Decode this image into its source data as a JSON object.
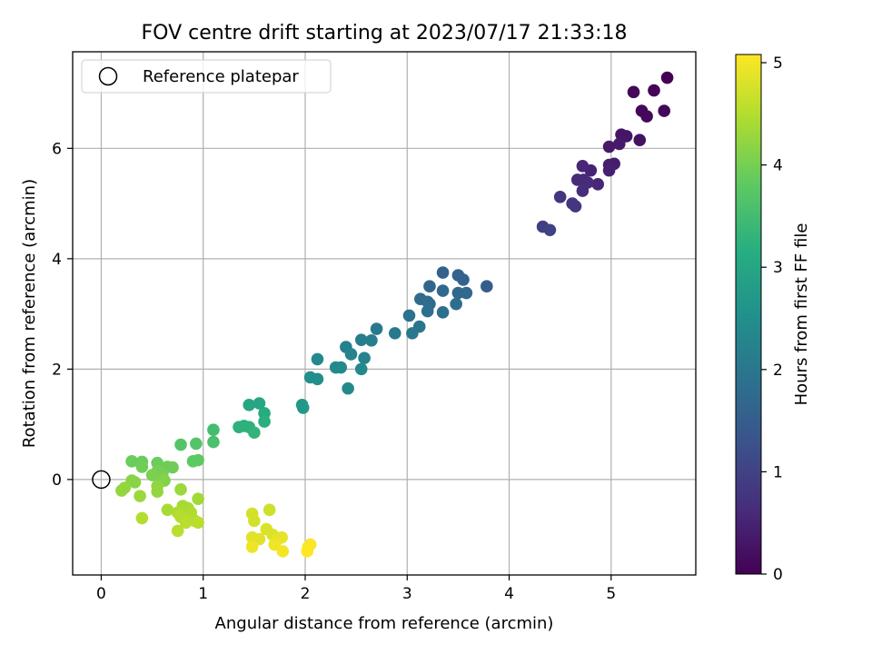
{
  "chart_data": {
    "type": "scatter",
    "title": "FOV centre drift starting at 2023/07/17 21:33:18",
    "xlabel": "Angular distance from reference (arcmin)",
    "ylabel": "Rotation from reference (arcmin)",
    "xlim": [
      -0.28,
      5.83
    ],
    "ylim": [
      -1.73,
      7.75
    ],
    "x_ticks": [
      0,
      1,
      2,
      3,
      4,
      5
    ],
    "y_ticks": [
      0,
      2,
      4,
      6
    ],
    "grid": true,
    "legend": {
      "placement": "top-left",
      "entries": [
        "Reference platepar"
      ]
    },
    "reference_point": {
      "x": 0,
      "y": 0,
      "label": "Reference platepar"
    },
    "colorbar": {
      "label": "Hours from first FF file",
      "range": [
        0,
        5.08
      ],
      "ticks": [
        0,
        1,
        2,
        3,
        4,
        5
      ],
      "colormap": "viridis"
    },
    "series": [
      {
        "points": [
          {
            "x": 5.55,
            "y": 7.28,
            "c": 0.0
          },
          {
            "x": 5.42,
            "y": 7.05,
            "c": 0.05
          },
          {
            "x": 5.22,
            "y": 7.02,
            "c": 0.08
          },
          {
            "x": 5.3,
            "y": 6.68,
            "c": 0.1
          },
          {
            "x": 5.35,
            "y": 6.58,
            "c": 0.12
          },
          {
            "x": 5.52,
            "y": 6.68,
            "c": 0.1
          },
          {
            "x": 5.28,
            "y": 6.15,
            "c": 0.25
          },
          {
            "x": 5.1,
            "y": 6.25,
            "c": 0.3
          },
          {
            "x": 5.15,
            "y": 6.22,
            "c": 0.3
          },
          {
            "x": 4.98,
            "y": 6.03,
            "c": 0.35
          },
          {
            "x": 5.08,
            "y": 6.08,
            "c": 0.35
          },
          {
            "x": 5.03,
            "y": 5.72,
            "c": 0.4
          },
          {
            "x": 4.98,
            "y": 5.7,
            "c": 0.42
          },
          {
            "x": 4.98,
            "y": 5.6,
            "c": 0.45
          },
          {
            "x": 4.8,
            "y": 5.6,
            "c": 0.5
          },
          {
            "x": 4.72,
            "y": 5.68,
            "c": 0.55
          },
          {
            "x": 4.87,
            "y": 5.35,
            "c": 0.55
          },
          {
            "x": 4.67,
            "y": 5.43,
            "c": 0.6
          },
          {
            "x": 4.73,
            "y": 5.43,
            "c": 0.6
          },
          {
            "x": 4.77,
            "y": 5.38,
            "c": 0.62
          },
          {
            "x": 4.72,
            "y": 5.23,
            "c": 0.65
          },
          {
            "x": 4.5,
            "y": 5.12,
            "c": 0.75
          },
          {
            "x": 4.62,
            "y": 5.0,
            "c": 0.8
          },
          {
            "x": 4.65,
            "y": 4.95,
            "c": 0.8
          },
          {
            "x": 4.33,
            "y": 4.58,
            "c": 0.95
          },
          {
            "x": 4.4,
            "y": 4.52,
            "c": 1.0
          },
          {
            "x": 3.35,
            "y": 3.75,
            "c": 1.55
          },
          {
            "x": 3.5,
            "y": 3.7,
            "c": 1.6
          },
          {
            "x": 3.55,
            "y": 3.62,
            "c": 1.6
          },
          {
            "x": 3.78,
            "y": 3.5,
            "c": 1.5
          },
          {
            "x": 3.22,
            "y": 3.5,
            "c": 1.65
          },
          {
            "x": 3.35,
            "y": 3.42,
            "c": 1.7
          },
          {
            "x": 3.5,
            "y": 3.38,
            "c": 1.7
          },
          {
            "x": 3.58,
            "y": 3.38,
            "c": 1.7
          },
          {
            "x": 3.13,
            "y": 3.27,
            "c": 1.75
          },
          {
            "x": 3.2,
            "y": 3.22,
            "c": 1.8
          },
          {
            "x": 3.22,
            "y": 3.18,
            "c": 1.8
          },
          {
            "x": 3.48,
            "y": 3.18,
            "c": 1.8
          },
          {
            "x": 3.2,
            "y": 3.05,
            "c": 1.85
          },
          {
            "x": 3.35,
            "y": 3.03,
            "c": 1.85
          },
          {
            "x": 3.02,
            "y": 2.97,
            "c": 1.9
          },
          {
            "x": 3.12,
            "y": 2.77,
            "c": 1.95
          },
          {
            "x": 3.05,
            "y": 2.65,
            "c": 2.0
          },
          {
            "x": 2.88,
            "y": 2.65,
            "c": 2.05
          },
          {
            "x": 2.7,
            "y": 2.73,
            "c": 2.05
          },
          {
            "x": 2.65,
            "y": 2.52,
            "c": 2.15
          },
          {
            "x": 2.55,
            "y": 2.53,
            "c": 2.15
          },
          {
            "x": 2.4,
            "y": 2.4,
            "c": 2.2
          },
          {
            "x": 2.45,
            "y": 2.27,
            "c": 2.25
          },
          {
            "x": 2.58,
            "y": 2.2,
            "c": 2.25
          },
          {
            "x": 2.12,
            "y": 2.18,
            "c": 2.35
          },
          {
            "x": 2.35,
            "y": 2.03,
            "c": 2.35
          },
          {
            "x": 2.3,
            "y": 2.03,
            "c": 2.4
          },
          {
            "x": 2.55,
            "y": 2.0,
            "c": 2.35
          },
          {
            "x": 2.05,
            "y": 1.85,
            "c": 2.5
          },
          {
            "x": 2.12,
            "y": 1.82,
            "c": 2.5
          },
          {
            "x": 2.42,
            "y": 1.65,
            "c": 2.4
          },
          {
            "x": 1.97,
            "y": 1.35,
            "c": 2.7
          },
          {
            "x": 1.98,
            "y": 1.3,
            "c": 2.7
          },
          {
            "x": 1.45,
            "y": 1.35,
            "c": 3.0
          },
          {
            "x": 1.55,
            "y": 1.38,
            "c": 3.0
          },
          {
            "x": 1.6,
            "y": 1.2,
            "c": 3.1
          },
          {
            "x": 1.6,
            "y": 1.05,
            "c": 3.2
          },
          {
            "x": 1.4,
            "y": 0.97,
            "c": 3.2
          },
          {
            "x": 1.35,
            "y": 0.95,
            "c": 3.25
          },
          {
            "x": 1.45,
            "y": 0.95,
            "c": 3.25
          },
          {
            "x": 1.5,
            "y": 0.85,
            "c": 3.3
          },
          {
            "x": 1.1,
            "y": 0.9,
            "c": 3.5
          },
          {
            "x": 1.1,
            "y": 0.68,
            "c": 3.6
          },
          {
            "x": 0.93,
            "y": 0.65,
            "c": 3.7
          },
          {
            "x": 0.78,
            "y": 0.63,
            "c": 3.7
          },
          {
            "x": 0.9,
            "y": 0.33,
            "c": 3.8
          },
          {
            "x": 0.95,
            "y": 0.35,
            "c": 3.8
          },
          {
            "x": 0.3,
            "y": 0.33,
            "c": 3.9
          },
          {
            "x": 0.4,
            "y": 0.32,
            "c": 3.9
          },
          {
            "x": 0.55,
            "y": 0.3,
            "c": 3.9
          },
          {
            "x": 0.4,
            "y": 0.23,
            "c": 3.95
          },
          {
            "x": 0.65,
            "y": 0.23,
            "c": 3.95
          },
          {
            "x": 0.7,
            "y": 0.22,
            "c": 3.95
          },
          {
            "x": 0.55,
            "y": 0.15,
            "c": 4.0
          },
          {
            "x": 0.6,
            "y": 0.1,
            "c": 4.0
          },
          {
            "x": 0.5,
            "y": 0.08,
            "c": 4.05
          },
          {
            "x": 0.6,
            "y": 0.02,
            "c": 4.05
          },
          {
            "x": 0.62,
            "y": -0.02,
            "c": 4.1
          },
          {
            "x": 0.3,
            "y": -0.02,
            "c": 4.15
          },
          {
            "x": 0.33,
            "y": -0.05,
            "c": 4.15
          },
          {
            "x": 0.55,
            "y": -0.12,
            "c": 4.2
          },
          {
            "x": 0.23,
            "y": -0.15,
            "c": 4.25
          },
          {
            "x": 0.2,
            "y": -0.2,
            "c": 4.25
          },
          {
            "x": 0.55,
            "y": -0.22,
            "c": 4.25
          },
          {
            "x": 0.38,
            "y": -0.3,
            "c": 4.3
          },
          {
            "x": 0.78,
            "y": -0.18,
            "c": 4.3
          },
          {
            "x": 0.95,
            "y": -0.35,
            "c": 4.35
          },
          {
            "x": 0.8,
            "y": -0.48,
            "c": 4.4
          },
          {
            "x": 0.85,
            "y": -0.52,
            "c": 4.4
          },
          {
            "x": 0.65,
            "y": -0.55,
            "c": 4.4
          },
          {
            "x": 0.88,
            "y": -0.6,
            "c": 4.45
          },
          {
            "x": 0.75,
            "y": -0.6,
            "c": 4.45
          },
          {
            "x": 0.78,
            "y": -0.68,
            "c": 4.5
          },
          {
            "x": 0.83,
            "y": -0.72,
            "c": 4.5
          },
          {
            "x": 0.92,
            "y": -0.75,
            "c": 4.5
          },
          {
            "x": 0.95,
            "y": -0.78,
            "c": 4.55
          },
          {
            "x": 0.83,
            "y": -0.78,
            "c": 4.55
          },
          {
            "x": 0.4,
            "y": -0.7,
            "c": 4.5
          },
          {
            "x": 0.75,
            "y": -0.93,
            "c": 4.55
          },
          {
            "x": 1.48,
            "y": -0.62,
            "c": 4.75
          },
          {
            "x": 1.5,
            "y": -0.75,
            "c": 4.75
          },
          {
            "x": 1.65,
            "y": -0.55,
            "c": 4.7
          },
          {
            "x": 1.62,
            "y": -0.9,
            "c": 4.8
          },
          {
            "x": 1.68,
            "y": -1.0,
            "c": 4.8
          },
          {
            "x": 1.48,
            "y": -1.05,
            "c": 4.85
          },
          {
            "x": 1.55,
            "y": -1.08,
            "c": 4.85
          },
          {
            "x": 1.72,
            "y": -1.1,
            "c": 4.9
          },
          {
            "x": 1.77,
            "y": -1.05,
            "c": 4.9
          },
          {
            "x": 1.7,
            "y": -1.18,
            "c": 4.95
          },
          {
            "x": 1.48,
            "y": -1.22,
            "c": 4.95
          },
          {
            "x": 1.78,
            "y": -1.3,
            "c": 5.0
          },
          {
            "x": 2.05,
            "y": -1.18,
            "c": 5.05
          },
          {
            "x": 2.03,
            "y": -1.22,
            "c": 5.05
          },
          {
            "x": 2.02,
            "y": -1.3,
            "c": 5.08
          }
        ]
      }
    ]
  }
}
